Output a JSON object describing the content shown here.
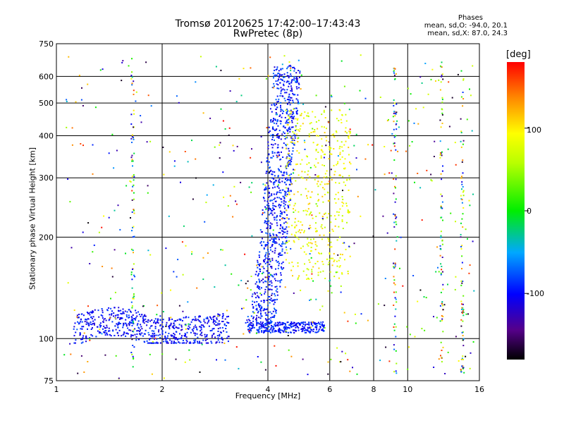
{
  "title_line1": "Tromsø 20120625 17:42:00–17:43:43",
  "title_line2": "RwPretec (8p)",
  "legend": {
    "heading": "Phases",
    "line1": "mean, sd,O: -94.0, 20.1",
    "line2": "mean, sd,X:  87.0, 24.3"
  },
  "colorbar": {
    "title": "[deg]",
    "labels": [
      "100",
      "0",
      "-100"
    ],
    "range": [
      -180,
      180
    ]
  },
  "chart_data": {
    "type": "scatter",
    "title": "Tromsø 20120625 17:42:00–17:43:43",
    "subtitle": "RwPretec (8p)",
    "xlabel": "Frequency [MHz]",
    "ylabel": "Stationary phase Virtual Height [km]",
    "x_scale": "log",
    "y_scale": "log",
    "xlim": [
      1,
      16
    ],
    "ylim": [
      75,
      750
    ],
    "x_ticks": [
      1,
      2,
      4,
      6,
      8,
      10,
      16
    ],
    "y_ticks": [
      75,
      100,
      200,
      300,
      400,
      500,
      600,
      750
    ],
    "grid": true,
    "colorscale": "phase [deg], -180 to 180 (black-purple-blue-cyan-green-yellow-orange-red)",
    "series": [
      {
        "trace": "E-region low trace",
        "x_range": [
          1.1,
          3.1
        ],
        "y_range": [
          98,
          125
        ],
        "phase_deg": -100
      },
      {
        "trace": "F-region O-mode",
        "x_range": [
          3.5,
          5.8
        ],
        "y_range": [
          105,
          650
        ],
        "phase_deg": -94
      },
      {
        "trace": "F-region X-mode",
        "x_range": [
          4.5,
          6.9
        ],
        "y_range": [
          150,
          480
        ],
        "phase_deg": 87
      },
      {
        "trace": "Interference column",
        "x_range": [
          1.62,
          1.68
        ],
        "y_range": [
          75,
          680
        ],
        "phase_deg": "mixed"
      },
      {
        "trace": "Interference column",
        "x_range": [
          9.1,
          9.3
        ],
        "y_range": [
          80,
          600
        ],
        "phase_deg": "mixed"
      },
      {
        "trace": "Interference column",
        "x_range": [
          12.4,
          12.6
        ],
        "y_range": [
          80,
          620
        ],
        "phase_deg": "mixed"
      },
      {
        "trace": "Interference column",
        "x_range": [
          14.2,
          14.4
        ],
        "y_range": [
          80,
          620
        ],
        "phase_deg": "mixed"
      }
    ]
  }
}
